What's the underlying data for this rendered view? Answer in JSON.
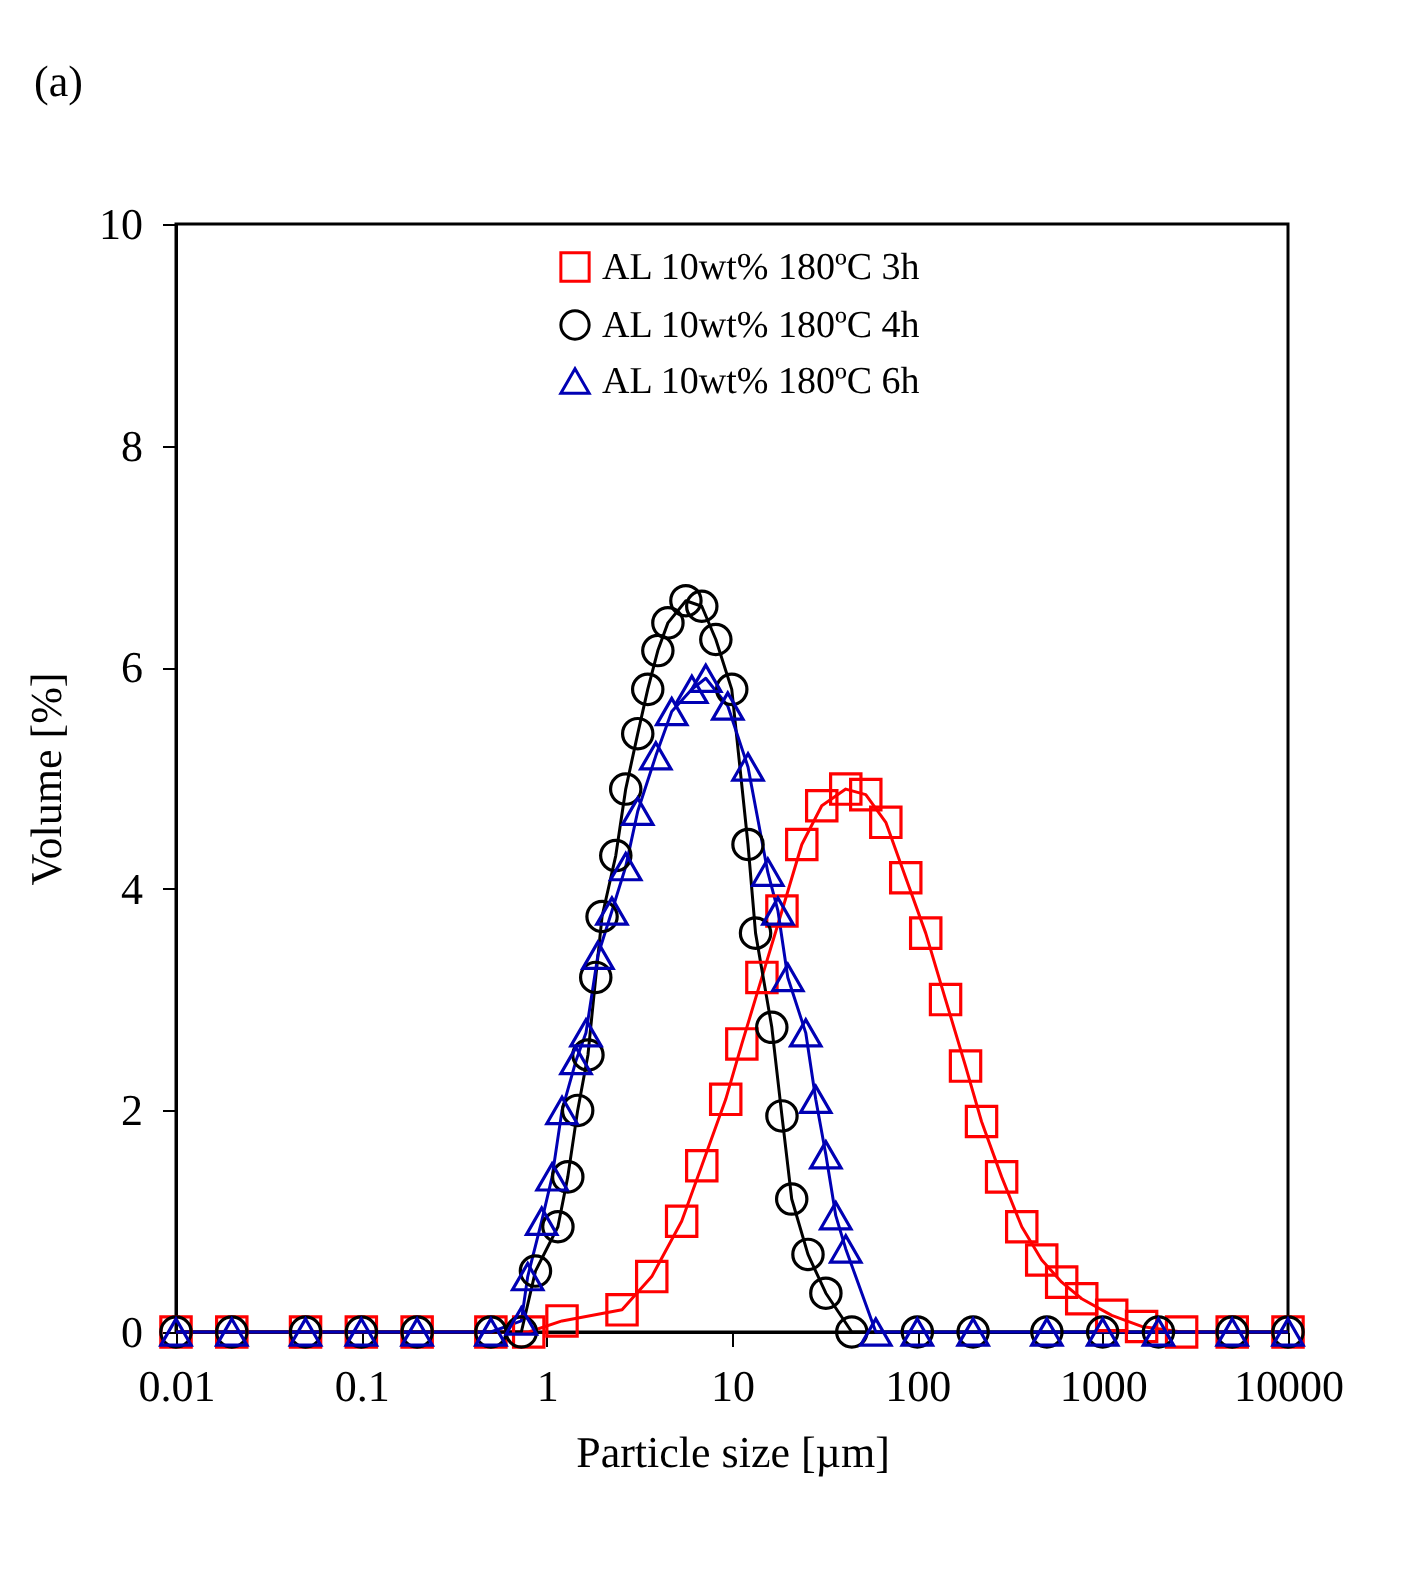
{
  "chart_data": {
    "type": "line",
    "xlabel": "Particle size [µm]",
    "ylabel": "Volume [%]",
    "log": "x",
    "xlim": [
      0.01,
      10000
    ],
    "xticks": [
      0.01,
      0.1,
      1,
      10,
      100,
      1000,
      10000
    ],
    "ylim": [
      0,
      10
    ],
    "yticks": [
      0,
      2,
      4,
      6,
      8,
      10
    ],
    "grid": false,
    "legend": "top",
    "annotations": [
      "(a)"
    ],
    "series": [
      {
        "name": "AL 10wt%  180ºC 3h",
        "color": "#ff0000",
        "marker": "square",
        "x": [
          0.01,
          0.02,
          0.05,
          0.1,
          0.2,
          0.5,
          0.8,
          1.21,
          2.55,
          3.69,
          5.35,
          6.87,
          9.25,
          11.3,
          14.5,
          18.6,
          23.8,
          30.5,
          41.1,
          52.7,
          67.6,
          86.6,
          111,
          142,
          182,
          222,
          285,
          366,
          469,
          601,
          771,
          1119,
          1622,
          2667,
          5000,
          10000
        ],
        "values": [
          0,
          0,
          0,
          0,
          0,
          0,
          0,
          0.1,
          0.2,
          0.5,
          1.0,
          1.5,
          2.1,
          2.6,
          3.2,
          3.8,
          4.4,
          4.75,
          4.9,
          4.85,
          4.6,
          4.1,
          3.6,
          3.0,
          2.4,
          1.9,
          1.4,
          0.95,
          0.65,
          0.45,
          0.3,
          0.15,
          0.05,
          0,
          0,
          0
        ]
      },
      {
        "name": "AL 10wt%  180ºC 4h",
        "color": "#000000",
        "marker": "circle",
        "x": [
          0.01,
          0.02,
          0.05,
          0.1,
          0.2,
          0.5,
          0.73,
          0.87,
          1.15,
          1.3,
          1.47,
          1.67,
          1.84,
          1.99,
          2.36,
          2.67,
          3.1,
          3.51,
          3.98,
          4.51,
          5.64,
          6.87,
          8.18,
          9.97,
          12.2,
          13.4,
          16.4,
          18.6,
          21.0,
          25.7,
          32.1,
          44.3,
          100,
          200,
          500,
          1000,
          2000,
          5000,
          10000
        ],
        "values": [
          0,
          0,
          0,
          0,
          0,
          0,
          0,
          0.55,
          0.95,
          1.4,
          2.0,
          2.5,
          3.2,
          3.75,
          4.3,
          4.9,
          5.4,
          5.8,
          6.15,
          6.4,
          6.6,
          6.55,
          6.25,
          5.8,
          4.4,
          3.6,
          2.75,
          1.95,
          1.2,
          0.7,
          0.35,
          0,
          0,
          0,
          0,
          0,
          0,
          0,
          0
        ]
      },
      {
        "name": "AL 10wt%  180ºC 6h",
        "color": "#0000b4",
        "marker": "triangle",
        "x": [
          0.01,
          0.02,
          0.05,
          0.1,
          0.2,
          0.5,
          0.73,
          0.79,
          0.94,
          1.07,
          1.21,
          1.44,
          1.63,
          1.89,
          2.25,
          2.67,
          3.1,
          3.88,
          4.73,
          6.07,
          7.22,
          9.49,
          12.2,
          15.6,
          17.7,
          20.0,
          25.0,
          28.3,
          32.1,
          36.3,
          41.1,
          59.7,
          100,
          200,
          500,
          1000,
          2000,
          5000,
          10000
        ],
        "values": [
          0,
          0,
          0,
          0,
          0,
          0,
          0.1,
          0.5,
          1.0,
          1.4,
          2.0,
          2.45,
          2.7,
          3.4,
          3.8,
          4.2,
          4.7,
          5.2,
          5.6,
          5.8,
          5.9,
          5.65,
          5.1,
          4.15,
          3.8,
          3.2,
          2.7,
          2.1,
          1.6,
          1.05,
          0.75,
          0,
          0,
          0,
          0,
          0,
          0,
          0,
          0
        ]
      }
    ]
  }
}
